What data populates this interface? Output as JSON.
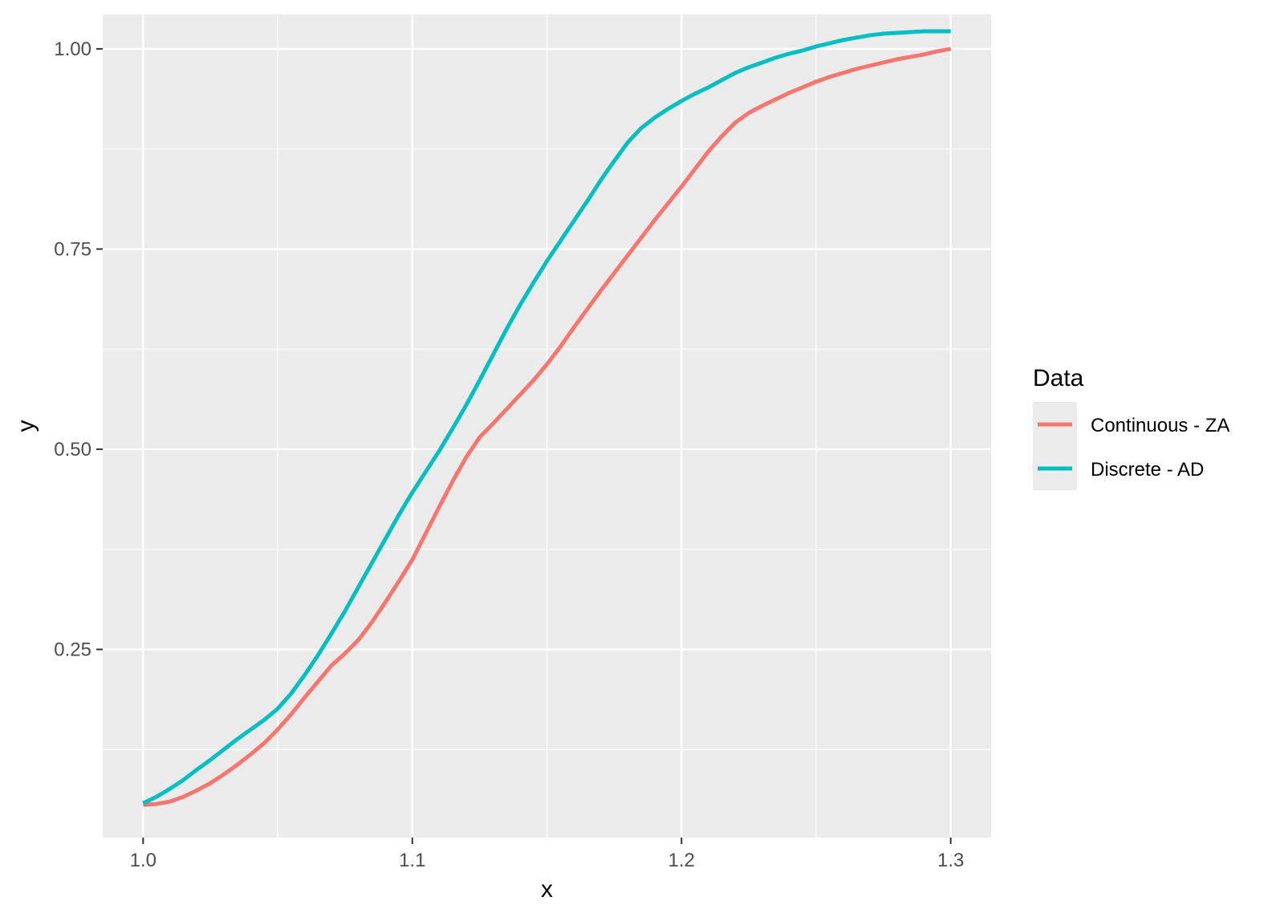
{
  "chart_data": {
    "type": "line",
    "xlabel": "x",
    "ylabel": "y",
    "xlim": [
      0.985,
      1.315
    ],
    "ylim": [
      0.015,
      1.043
    ],
    "x_ticks": [
      1.0,
      1.1,
      1.2,
      1.3
    ],
    "x_tick_labels": [
      "1.0",
      "1.1",
      "1.2",
      "1.3"
    ],
    "x_minor_ticks": [
      1.05,
      1.15,
      1.25
    ],
    "y_ticks": [
      0.25,
      0.5,
      0.75,
      1.0
    ],
    "y_tick_labels": [
      "0.25",
      "0.50",
      "0.75",
      "1.00"
    ],
    "y_minor_ticks": [
      0.125,
      0.375,
      0.625,
      0.875
    ],
    "grid": true,
    "panel_background": "#ebebeb",
    "grid_color": "#ffffff",
    "legend": {
      "title": "Data",
      "placement": "right"
    },
    "series": [
      {
        "name": "Continuous -  ZA",
        "color": "#f8766d",
        "points": [
          [
            1.0,
            0.056
          ],
          [
            1.005,
            0.057
          ],
          [
            1.01,
            0.06
          ],
          [
            1.015,
            0.066
          ],
          [
            1.02,
            0.074
          ],
          [
            1.025,
            0.083
          ],
          [
            1.03,
            0.094
          ],
          [
            1.035,
            0.106
          ],
          [
            1.04,
            0.119
          ],
          [
            1.045,
            0.133
          ],
          [
            1.05,
            0.15
          ],
          [
            1.055,
            0.169
          ],
          [
            1.06,
            0.19
          ],
          [
            1.065,
            0.21
          ],
          [
            1.07,
            0.23
          ],
          [
            1.075,
            0.245
          ],
          [
            1.08,
            0.262
          ],
          [
            1.085,
            0.284
          ],
          [
            1.09,
            0.309
          ],
          [
            1.095,
            0.335
          ],
          [
            1.1,
            0.362
          ],
          [
            1.105,
            0.395
          ],
          [
            1.11,
            0.428
          ],
          [
            1.115,
            0.46
          ],
          [
            1.12,
            0.49
          ],
          [
            1.125,
            0.515
          ],
          [
            1.13,
            0.532
          ],
          [
            1.135,
            0.55
          ],
          [
            1.14,
            0.568
          ],
          [
            1.145,
            0.586
          ],
          [
            1.15,
            0.606
          ],
          [
            1.155,
            0.628
          ],
          [
            1.16,
            0.652
          ],
          [
            1.165,
            0.675
          ],
          [
            1.17,
            0.698
          ],
          [
            1.175,
            0.72
          ],
          [
            1.18,
            0.742
          ],
          [
            1.185,
            0.764
          ],
          [
            1.19,
            0.786
          ],
          [
            1.195,
            0.807
          ],
          [
            1.2,
            0.828
          ],
          [
            1.205,
            0.85
          ],
          [
            1.21,
            0.872
          ],
          [
            1.215,
            0.891
          ],
          [
            1.22,
            0.908
          ],
          [
            1.225,
            0.92
          ],
          [
            1.23,
            0.929
          ],
          [
            1.235,
            0.937
          ],
          [
            1.24,
            0.945
          ],
          [
            1.245,
            0.952
          ],
          [
            1.25,
            0.959
          ],
          [
            1.255,
            0.965
          ],
          [
            1.26,
            0.97
          ],
          [
            1.265,
            0.975
          ],
          [
            1.27,
            0.979
          ],
          [
            1.275,
            0.983
          ],
          [
            1.28,
            0.987
          ],
          [
            1.285,
            0.99
          ],
          [
            1.29,
            0.993
          ],
          [
            1.295,
            0.997
          ],
          [
            1.3,
            1.0
          ]
        ]
      },
      {
        "name": "Discrete -  AD",
        "color": "#00bfc4",
        "points": [
          [
            1.0,
            0.058
          ],
          [
            1.005,
            0.066
          ],
          [
            1.01,
            0.076
          ],
          [
            1.015,
            0.087
          ],
          [
            1.02,
            0.1
          ],
          [
            1.025,
            0.112
          ],
          [
            1.03,
            0.125
          ],
          [
            1.035,
            0.138
          ],
          [
            1.04,
            0.15
          ],
          [
            1.045,
            0.162
          ],
          [
            1.05,
            0.176
          ],
          [
            1.055,
            0.195
          ],
          [
            1.06,
            0.218
          ],
          [
            1.065,
            0.243
          ],
          [
            1.07,
            0.27
          ],
          [
            1.075,
            0.298
          ],
          [
            1.08,
            0.328
          ],
          [
            1.085,
            0.358
          ],
          [
            1.09,
            0.388
          ],
          [
            1.095,
            0.418
          ],
          [
            1.1,
            0.446
          ],
          [
            1.105,
            0.472
          ],
          [
            1.11,
            0.498
          ],
          [
            1.115,
            0.526
          ],
          [
            1.12,
            0.555
          ],
          [
            1.125,
            0.586
          ],
          [
            1.13,
            0.618
          ],
          [
            1.135,
            0.65
          ],
          [
            1.14,
            0.68
          ],
          [
            1.145,
            0.708
          ],
          [
            1.15,
            0.735
          ],
          [
            1.155,
            0.76
          ],
          [
            1.16,
            0.785
          ],
          [
            1.165,
            0.81
          ],
          [
            1.17,
            0.836
          ],
          [
            1.175,
            0.86
          ],
          [
            1.18,
            0.883
          ],
          [
            1.185,
            0.901
          ],
          [
            1.19,
            0.914
          ],
          [
            1.195,
            0.925
          ],
          [
            1.2,
            0.935
          ],
          [
            1.205,
            0.944
          ],
          [
            1.21,
            0.952
          ],
          [
            1.215,
            0.961
          ],
          [
            1.22,
            0.97
          ],
          [
            1.225,
            0.977
          ],
          [
            1.23,
            0.983
          ],
          [
            1.235,
            0.989
          ],
          [
            1.24,
            0.994
          ],
          [
            1.245,
            0.998
          ],
          [
            1.25,
            1.003
          ],
          [
            1.255,
            1.007
          ],
          [
            1.26,
            1.011
          ],
          [
            1.265,
            1.014
          ],
          [
            1.27,
            1.017
          ],
          [
            1.275,
            1.019
          ],
          [
            1.28,
            1.02
          ],
          [
            1.285,
            1.021
          ],
          [
            1.29,
            1.022
          ],
          [
            1.295,
            1.022
          ],
          [
            1.3,
            1.022
          ]
        ]
      }
    ]
  }
}
